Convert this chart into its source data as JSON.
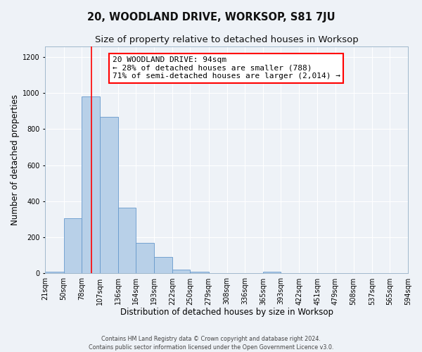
{
  "title": "20, WOODLAND DRIVE, WORKSOP, S81 7JU",
  "subtitle": "Size of property relative to detached houses in Worksop",
  "xlabel": "Distribution of detached houses by size in Worksop",
  "ylabel": "Number of detached properties",
  "bin_edges": [
    21,
    50,
    78,
    107,
    136,
    164,
    193,
    222,
    250,
    279,
    308,
    336,
    365,
    393,
    422,
    451,
    479,
    508,
    537,
    565,
    594
  ],
  "bar_heights": [
    10,
    308,
    980,
    870,
    365,
    170,
    90,
    22,
    8,
    0,
    0,
    0,
    8,
    0,
    0,
    0,
    0,
    0,
    0,
    0
  ],
  "bar_color": "#b8d0e8",
  "bar_edge_color": "#6699cc",
  "red_line_x": 94,
  "annotation_line1": "20 WOODLAND DRIVE: 94sqm",
  "annotation_line2": "← 28% of detached houses are smaller (788)",
  "annotation_line3": "71% of semi-detached houses are larger (2,014) →",
  "ylim": [
    0,
    1260
  ],
  "yticks": [
    0,
    200,
    400,
    600,
    800,
    1000,
    1200
  ],
  "xtick_labels": [
    "21sqm",
    "50sqm",
    "78sqm",
    "107sqm",
    "136sqm",
    "164sqm",
    "193sqm",
    "222sqm",
    "250sqm",
    "279sqm",
    "308sqm",
    "336sqm",
    "365sqm",
    "393sqm",
    "422sqm",
    "451sqm",
    "479sqm",
    "508sqm",
    "537sqm",
    "565sqm",
    "594sqm"
  ],
  "footer_line1": "Contains HM Land Registry data © Crown copyright and database right 2024.",
  "footer_line2": "Contains public sector information licensed under the Open Government Licence v3.0.",
  "background_color": "#eef2f7",
  "grid_color": "#ffffff",
  "title_fontsize": 10.5,
  "subtitle_fontsize": 9.5,
  "axis_label_fontsize": 8.5,
  "tick_fontsize": 7,
  "annotation_fontsize": 8
}
